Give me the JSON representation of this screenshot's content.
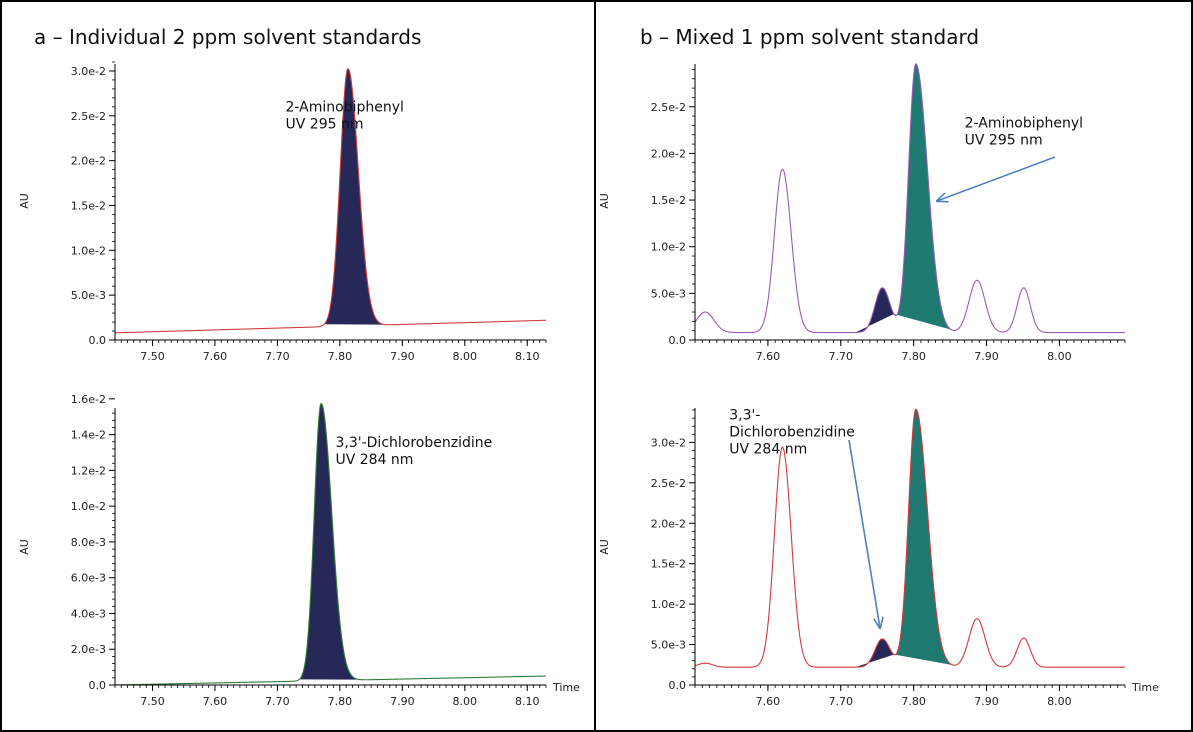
{
  "panels": [
    {
      "title": "a – Individual  2 ppm solvent standards"
    },
    {
      "title": "b – Mixed 1 ppm solvent standard"
    }
  ],
  "colors": {
    "navy_fill": "#262858",
    "teal_fill": "#1f7a72",
    "red_trace": "#d23a3a",
    "green_trace": "#2e7d32",
    "purple_trace": "#9b59b6",
    "arrow": "#4f81bd",
    "frame": "#000000"
  },
  "chart_data": [
    {
      "type": "line",
      "ylabel": "AU",
      "xlabel": "",
      "xlim": [
        7.44,
        8.13
      ],
      "ylim": [
        0,
        0.031
      ],
      "xticks": [
        "7.50",
        "7.60",
        "7.70",
        "7.80",
        "7.90",
        "8.00",
        "8.10"
      ],
      "yticks": [
        "0.0",
        "5.0e-3",
        "1.0e-2",
        "1.5e-2",
        "2.0e-2",
        "2.5e-2",
        "3.0e-2"
      ],
      "trace_color": "red",
      "baseline": [
        0.0008,
        0.0022
      ],
      "peaks": [
        {
          "center": 7.813,
          "height": 0.0287,
          "sigma_left": 0.0125,
          "sigma_right": 0.0165,
          "fill": "navy",
          "start": 7.775,
          "end": 7.885
        }
      ],
      "annotation": {
        "lines": [
          "2-Aminobiphenyl",
          "UV 295 nm"
        ],
        "x": 7.713,
        "y": 0.0255
      }
    },
    {
      "type": "line",
      "ylabel": "AU",
      "xlabel": "Time",
      "xlim": [
        7.44,
        8.13
      ],
      "ylim": [
        0,
        0.0156
      ],
      "xticks": [
        "7.50",
        "7.60",
        "7.70",
        "7.80",
        "7.90",
        "8.00",
        "8.10"
      ],
      "yticks": [
        "0.0",
        "2.0e-3",
        "4.0e-3",
        "6.0e-3",
        "8.0e-3",
        "1.0e-2",
        "1.2e-2",
        "1.4e-2",
        "1.6e-2"
      ],
      "trace_color": "green",
      "baseline": [
        0.0,
        0.0005
      ],
      "peaks": [
        {
          "center": 7.77,
          "height": 0.0155,
          "sigma_left": 0.011,
          "sigma_right": 0.017,
          "fill": "navy",
          "start": 7.735,
          "end": 7.85
        }
      ],
      "annotation": {
        "lines": [
          "3,3'-Dichlorobenzidine",
          "UV 284 nm"
        ],
        "x": 7.793,
        "y": 0.0133
      }
    },
    {
      "type": "line",
      "ylabel": "AU",
      "xlabel": "",
      "xlim": [
        7.5,
        8.09
      ],
      "ylim": [
        0,
        0.0298
      ],
      "xticks": [
        "7.60",
        "7.70",
        "7.80",
        "7.90",
        "8.00"
      ],
      "yticks": [
        "0.0",
        "5.0e-3",
        "1.0e-2",
        "1.5e-2",
        "2.0e-2",
        "2.5e-2"
      ],
      "trace_color": "purple",
      "baseline": [
        0.0008,
        0.0008
      ],
      "peaks": [
        {
          "center": 7.514,
          "height": 0.0022,
          "sigma_left": 0.012,
          "sigma_right": 0.012
        },
        {
          "center": 7.62,
          "height": 0.0175,
          "sigma_left": 0.011,
          "sigma_right": 0.012
        },
        {
          "center": 7.757,
          "height": 0.0048,
          "sigma_left": 0.01,
          "sigma_right": 0.011,
          "fill": "navy",
          "start": 7.72,
          "end": 7.773
        },
        {
          "center": 7.803,
          "height": 0.0288,
          "sigma_left": 0.01,
          "sigma_right": 0.016,
          "fill": "teal",
          "start": 7.773,
          "end": 7.855
        },
        {
          "center": 7.887,
          "height": 0.0056,
          "sigma_left": 0.011,
          "sigma_right": 0.011
        },
        {
          "center": 7.951,
          "height": 0.0048,
          "sigma_left": 0.009,
          "sigma_right": 0.009
        }
      ],
      "annotation": {
        "lines": [
          "2-Aminobiphenyl",
          "UV 295 nm"
        ],
        "x": 7.87,
        "y": 0.0228
      }
    },
    {
      "type": "line",
      "ylabel": "AU",
      "xlabel": "Time",
      "xlim": [
        7.5,
        8.09
      ],
      "ylim": [
        0,
        0.0345
      ],
      "xticks": [
        "7.60",
        "7.70",
        "7.80",
        "7.90",
        "8.00"
      ],
      "yticks": [
        "0.0",
        "5.0e-3",
        "1.0e-2",
        "1.5e-2",
        "2.0e-2",
        "2.5e-2",
        "3.0e-2"
      ],
      "trace_color": "red",
      "baseline": [
        0.0022,
        0.0022
      ],
      "peaks": [
        {
          "center": 7.514,
          "height": 0.0005,
          "sigma_left": 0.01,
          "sigma_right": 0.01
        },
        {
          "center": 7.62,
          "height": 0.0272,
          "sigma_left": 0.011,
          "sigma_right": 0.012
        },
        {
          "center": 7.757,
          "height": 0.0035,
          "sigma_left": 0.01,
          "sigma_right": 0.011,
          "fill": "navy",
          "start": 7.72,
          "end": 7.773
        },
        {
          "center": 7.803,
          "height": 0.0319,
          "sigma_left": 0.01,
          "sigma_right": 0.016,
          "fill": "teal",
          "start": 7.773,
          "end": 7.855
        },
        {
          "center": 7.887,
          "height": 0.006,
          "sigma_left": 0.011,
          "sigma_right": 0.011
        },
        {
          "center": 7.951,
          "height": 0.0036,
          "sigma_left": 0.009,
          "sigma_right": 0.009
        }
      ],
      "annotation": {
        "lines": [
          "3,3'-",
          "Dichlorobenzidine",
          "UV 284 nm"
        ],
        "x": 7.547,
        "y": 0.0328
      }
    }
  ]
}
